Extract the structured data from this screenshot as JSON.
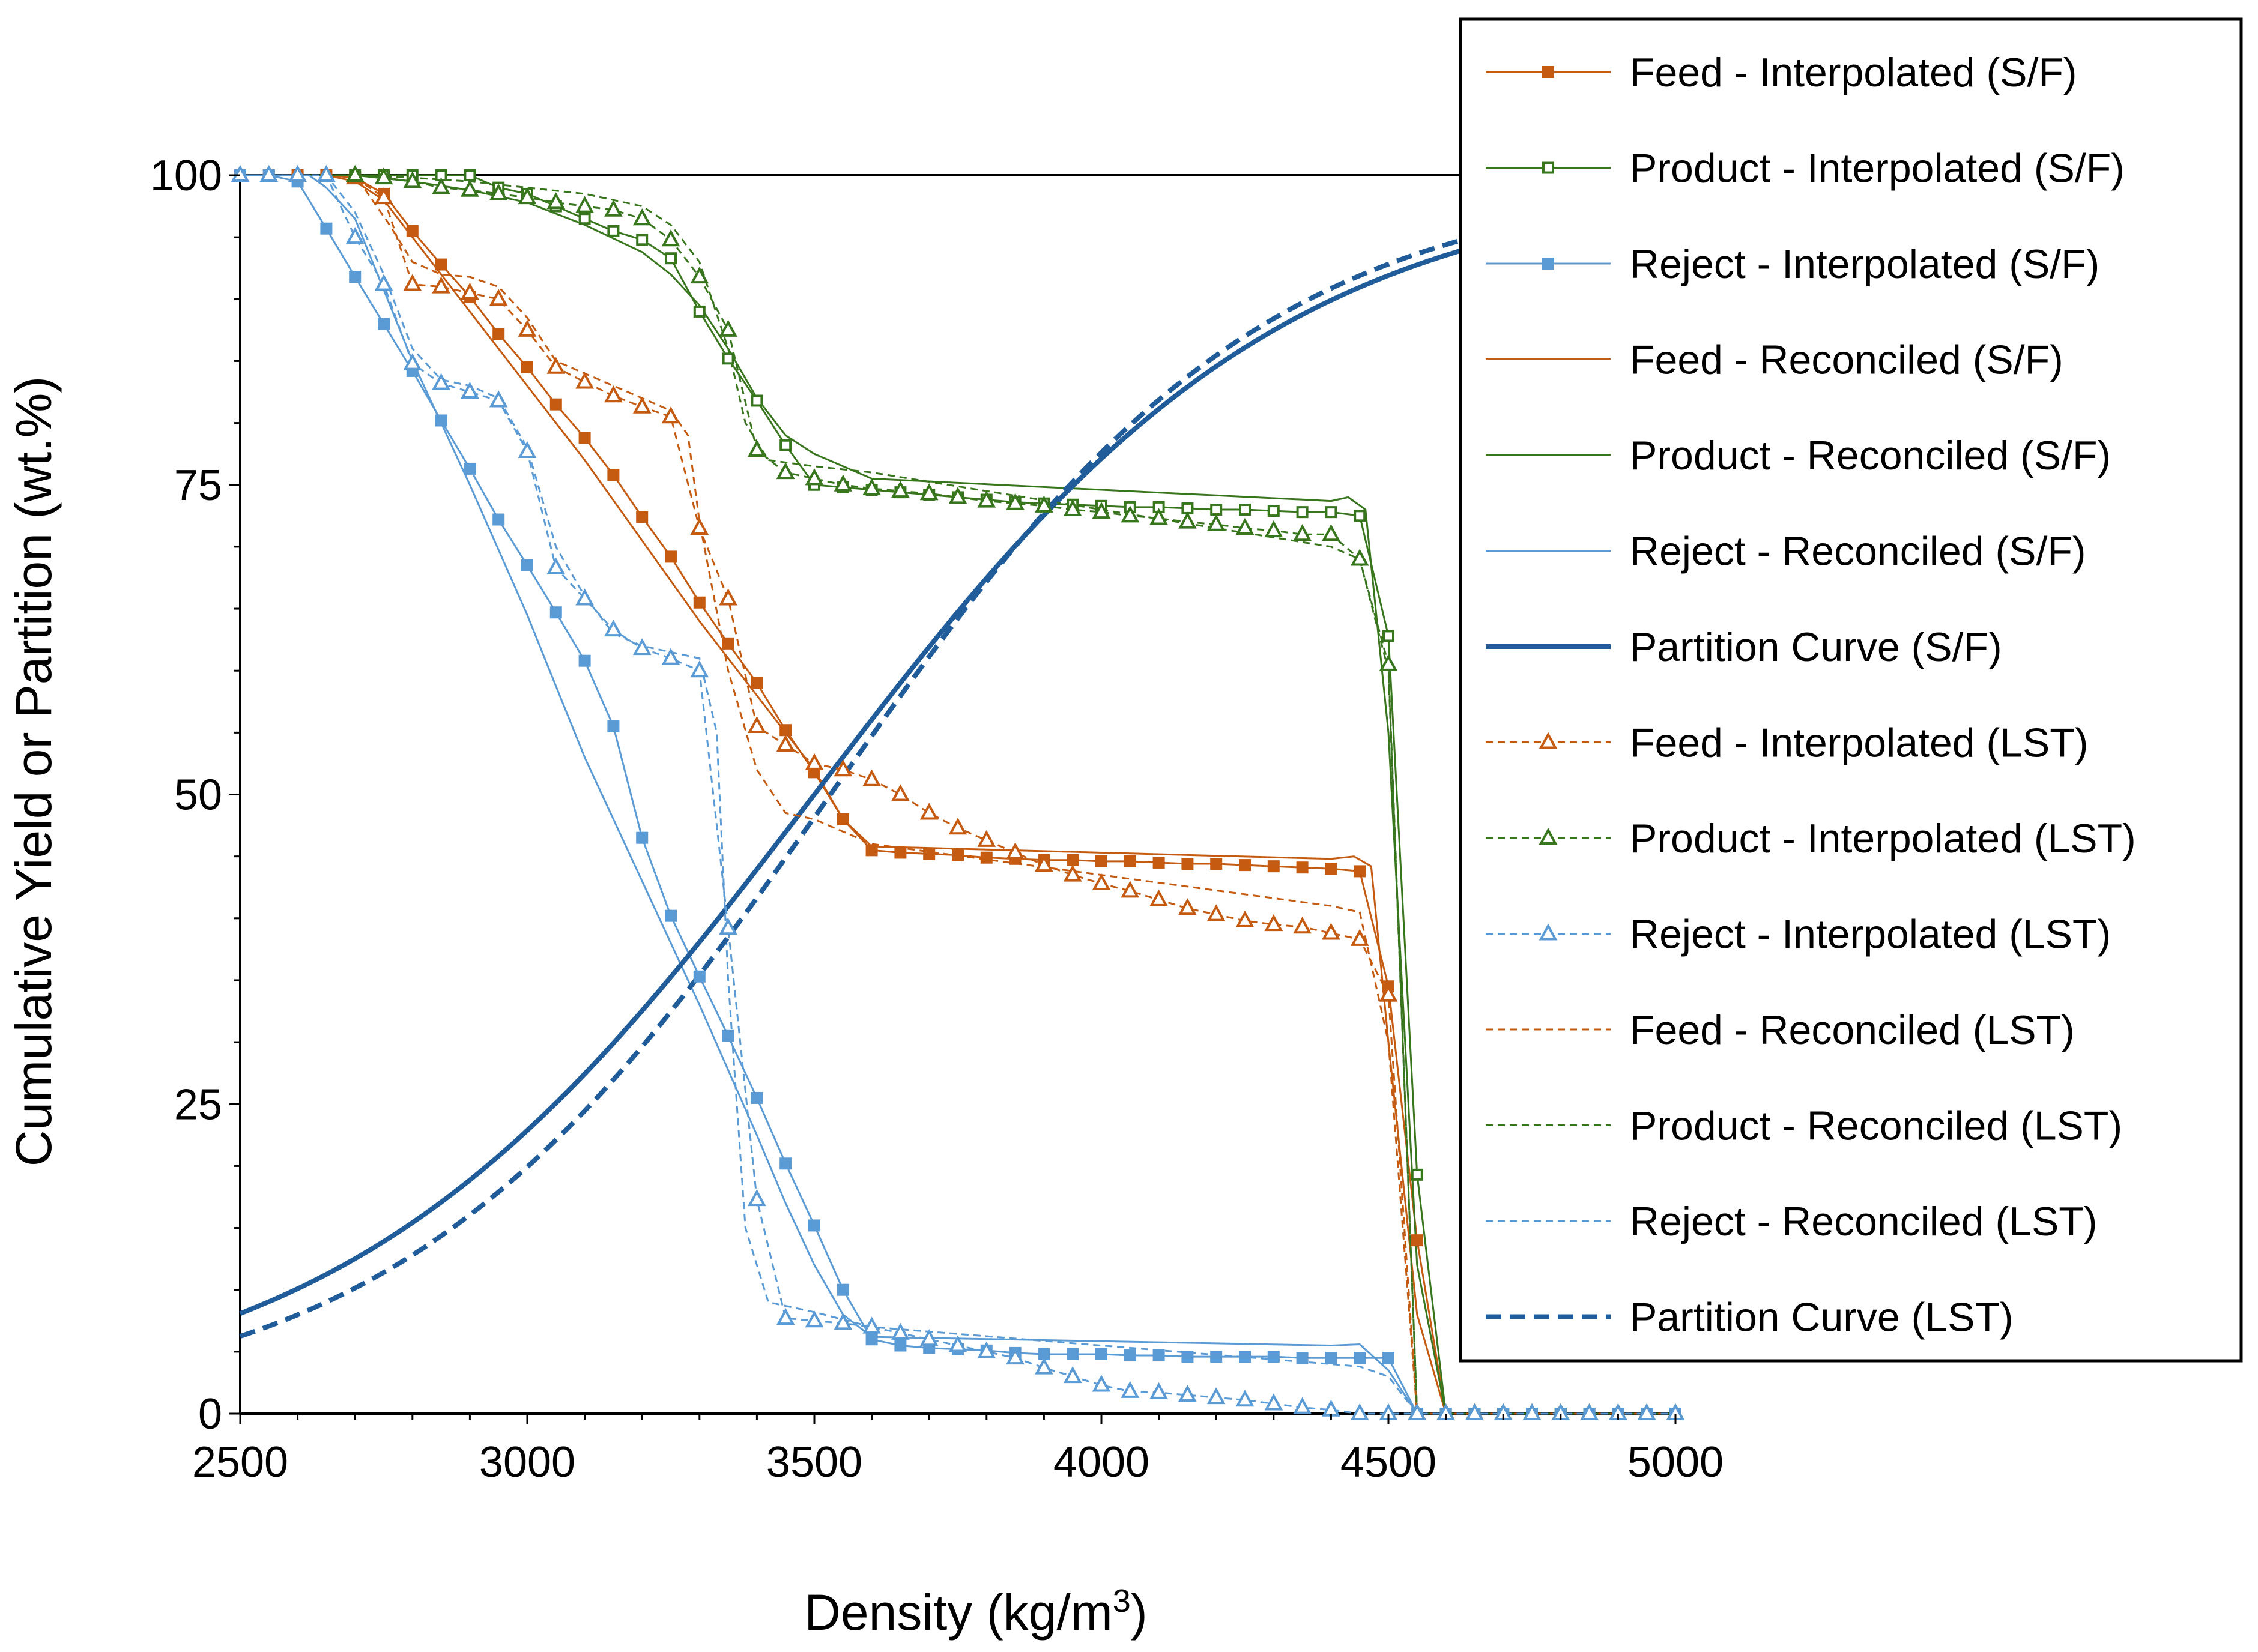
{
  "chart_data": {
    "type": "line",
    "xlabel": "Density (kg/m",
    "xlabel_sup": "3",
    "xlabel_close": ")",
    "ylabel": "Cumulative Yield or Partition (wt.%)",
    "xlim": [
      2500,
      5000
    ],
    "ylim": [
      0,
      100
    ],
    "xticks": [
      2500,
      3000,
      3500,
      4000,
      4500,
      5000
    ],
    "yticks": [
      0,
      25,
      50,
      75,
      100
    ],
    "legend_position": "top-right",
    "colors": {
      "feed": "#C55A11",
      "product": "#38761D",
      "reject": "#5B9BD5",
      "partition": "#1F5C99"
    },
    "series": [
      {
        "name": "Feed - Interpolated (S/F)",
        "color": "#C55A11",
        "style": "solid",
        "width": 3,
        "marker": "square-filled",
        "x": [
          2500,
          2550,
          2600,
          2650,
          2700,
          2750,
          2800,
          2850,
          2900,
          2950,
          3000,
          3050,
          3100,
          3150,
          3200,
          3250,
          3300,
          3350,
          3400,
          3450,
          3500,
          3550,
          3600,
          3650,
          3700,
          3750,
          3800,
          3850,
          3900,
          3950,
          4000,
          4050,
          4100,
          4150,
          4200,
          4250,
          4300,
          4350,
          4400,
          4450,
          4500,
          4550,
          4600,
          4650,
          4700,
          4750,
          4800,
          4850,
          4900,
          4950,
          5000
        ],
        "y": [
          100,
          100,
          100,
          100,
          99.8,
          98.5,
          95.5,
          92.8,
          90.2,
          87.2,
          84.5,
          81.5,
          78.8,
          75.8,
          72.4,
          69.2,
          65.5,
          62.2,
          59,
          55.2,
          51.8,
          48,
          45.5,
          45.3,
          45.2,
          45.1,
          44.9,
          44.8,
          44.7,
          44.7,
          44.6,
          44.6,
          44.5,
          44.4,
          44.4,
          44.3,
          44.2,
          44.1,
          44,
          43.8,
          34.5,
          14,
          0,
          0,
          0,
          0,
          0,
          0,
          0,
          0,
          0
        ]
      },
      {
        "name": "Product - Interpolated (S/F)",
        "color": "#38761D",
        "style": "solid",
        "width": 3,
        "marker": "square-open",
        "x": [
          2700,
          2750,
          2800,
          2850,
          2900,
          2950,
          3000,
          3050,
          3100,
          3150,
          3200,
          3250,
          3300,
          3350,
          3400,
          3450,
          3500,
          3550,
          3600,
          3650,
          3700,
          3750,
          3800,
          3850,
          3900,
          3950,
          4000,
          4050,
          4100,
          4150,
          4200,
          4250,
          4300,
          4350,
          4400,
          4450,
          4500,
          4550,
          4600,
          4650,
          4700,
          4750,
          4800,
          4850,
          4900,
          4950,
          5000
        ],
        "y": [
          100,
          100,
          100,
          100,
          100,
          99,
          98.5,
          97.5,
          96.5,
          95.5,
          94.8,
          93.3,
          89,
          85.2,
          81.8,
          78.2,
          75,
          74.8,
          74.6,
          74.4,
          74.2,
          74,
          73.8,
          73.6,
          73.5,
          73.4,
          73.3,
          73.2,
          73.2,
          73.1,
          73,
          73,
          72.9,
          72.8,
          72.8,
          72.5,
          62.8,
          19.3,
          0,
          0,
          0,
          0,
          0,
          0,
          0,
          0,
          0
        ]
      },
      {
        "name": "Reject - Interpolated (S/F)",
        "color": "#5B9BD5",
        "style": "solid",
        "width": 3,
        "marker": "square-filled",
        "x": [
          2500,
          2550,
          2600,
          2650,
          2700,
          2750,
          2800,
          2850,
          2900,
          2950,
          3000,
          3050,
          3100,
          3150,
          3200,
          3250,
          3300,
          3350,
          3400,
          3450,
          3500,
          3550,
          3600,
          3650,
          3700,
          3750,
          3800,
          3850,
          3900,
          3950,
          4000,
          4050,
          4100,
          4150,
          4200,
          4250,
          4300,
          4350,
          4400,
          4450,
          4500,
          4550,
          4600,
          4650,
          4700,
          4750,
          4800,
          4850,
          4900,
          4950,
          5000
        ],
        "y": [
          100,
          100,
          99.5,
          95.7,
          91.8,
          88,
          84.2,
          80.2,
          76.3,
          72.2,
          68.5,
          64.7,
          60.8,
          55.5,
          46.5,
          40.2,
          35.3,
          30.5,
          25.5,
          20.2,
          15.2,
          10,
          6,
          5.5,
          5.3,
          5.2,
          5.1,
          4.9,
          4.8,
          4.8,
          4.8,
          4.7,
          4.7,
          4.6,
          4.6,
          4.6,
          4.6,
          4.5,
          4.5,
          4.5,
          4.5,
          0,
          0,
          0,
          0,
          0,
          0,
          0,
          0,
          0,
          0
        ]
      },
      {
        "name": "Feed - Reconciled (S/F)",
        "color": "#C55A11",
        "style": "solid",
        "width": 3,
        "marker": "none",
        "x": [
          2500,
          2650,
          2700,
          2750,
          2800,
          2900,
          3000,
          3100,
          3200,
          3300,
          3400,
          3500,
          3550,
          3600,
          4400,
          4440,
          4470,
          4500,
          4550,
          4600,
          5000
        ],
        "y": [
          100,
          100,
          99.5,
          98,
          95,
          89,
          83,
          77,
          70.5,
          64,
          58,
          52,
          48,
          45.8,
          44.8,
          45,
          44.2,
          30,
          8,
          0,
          0
        ]
      },
      {
        "name": "Product - Reconciled (S/F)",
        "color": "#38761D",
        "style": "solid",
        "width": 3,
        "marker": "none",
        "x": [
          2500,
          2700,
          2800,
          2900,
          3000,
          3100,
          3200,
          3250,
          3300,
          3350,
          3400,
          3450,
          3500,
          3550,
          3600,
          4400,
          4430,
          4460,
          4500,
          4550,
          4600,
          5000
        ],
        "y": [
          100,
          100,
          99.5,
          98.8,
          97.8,
          96,
          93.8,
          92,
          89.5,
          86,
          82,
          79,
          77.5,
          76.5,
          75.5,
          73.7,
          74,
          73,
          55,
          12,
          0,
          0
        ]
      },
      {
        "name": "Reject - Reconciled (S/F)",
        "color": "#5B9BD5",
        "style": "solid",
        "width": 3,
        "marker": "none",
        "x": [
          2500,
          2620,
          2650,
          2700,
          2800,
          2900,
          3000,
          3100,
          3200,
          3300,
          3400,
          3450,
          3500,
          3550,
          3600,
          4400,
          4450,
          4500,
          4550,
          5000
        ],
        "y": [
          100,
          100,
          99,
          96.5,
          85,
          75,
          64.5,
          53,
          43,
          33,
          22.5,
          17,
          12,
          8,
          6.2,
          5.5,
          5.6,
          3.5,
          0,
          0
        ]
      },
      {
        "name": "Partition Curve (S/F)",
        "color": "#1F5C99",
        "style": "solid",
        "width": 8,
        "marker": "none",
        "curve": "partition",
        "ep": 452,
        "d50": 3500,
        "x": [],
        "y": []
      },
      {
        "name": "Feed - Interpolated (LST)",
        "color": "#C55A11",
        "style": "dashed",
        "width": 3,
        "marker": "triangle-open",
        "x": [
          2700,
          2750,
          2800,
          2850,
          2900,
          2950,
          3000,
          3050,
          3100,
          3150,
          3200,
          3250,
          3300,
          3350,
          3400,
          3450,
          3500,
          3550,
          3600,
          3650,
          3700,
          3750,
          3800,
          3850,
          3900,
          3950,
          4000,
          4050,
          4100,
          4150,
          4200,
          4250,
          4300,
          4350,
          4400,
          4450,
          4500,
          4550,
          4600,
          4650,
          4700,
          4750,
          4800,
          4850,
          4900,
          4950,
          5000
        ],
        "y": [
          99.8,
          98.2,
          91.2,
          91,
          90.5,
          90,
          87.5,
          84.5,
          83.3,
          82.2,
          81.3,
          80.5,
          71.5,
          65.8,
          55.5,
          54,
          52.5,
          52,
          51.2,
          50,
          48.5,
          47.3,
          46.3,
          45.3,
          44.3,
          43.5,
          42.8,
          42.2,
          41.5,
          40.8,
          40.3,
          39.8,
          39.5,
          39.3,
          38.8,
          38.3,
          33.8,
          0,
          0,
          0,
          0,
          0,
          0,
          0,
          0,
          0,
          0
        ]
      },
      {
        "name": "Product - Interpolated (LST)",
        "color": "#38761D",
        "style": "dashed",
        "width": 3,
        "marker": "triangle-open",
        "x": [
          2700,
          2750,
          2800,
          2850,
          2900,
          2950,
          3000,
          3050,
          3100,
          3150,
          3200,
          3250,
          3300,
          3350,
          3400,
          3450,
          3500,
          3550,
          3600,
          3650,
          3700,
          3750,
          3800,
          3850,
          3900,
          3950,
          4000,
          4050,
          4100,
          4150,
          4200,
          4250,
          4300,
          4350,
          4400,
          4450,
          4500,
          4550,
          4600,
          4650,
          4700,
          4750,
          4800,
          4850,
          4900,
          4950,
          5000
        ],
        "y": [
          100,
          99.8,
          99.5,
          99,
          98.8,
          98.5,
          98.2,
          97.8,
          97.5,
          97.2,
          96.5,
          94.8,
          91.8,
          87.5,
          77.8,
          76,
          75.5,
          75,
          74.7,
          74.5,
          74.3,
          74,
          73.7,
          73.5,
          73.3,
          73,
          72.8,
          72.5,
          72.3,
          72,
          71.8,
          71.5,
          71.3,
          71,
          71,
          69,
          60.5,
          0,
          0,
          0,
          0,
          0,
          0,
          0,
          0,
          0,
          0
        ]
      },
      {
        "name": "Reject - Interpolated (LST)",
        "color": "#5B9BD5",
        "style": "dashed",
        "width": 3,
        "marker": "triangle-open",
        "x": [
          2500,
          2550,
          2600,
          2650,
          2700,
          2750,
          2800,
          2850,
          2900,
          2950,
          3000,
          3050,
          3100,
          3150,
          3200,
          3250,
          3300,
          3350,
          3400,
          3450,
          3500,
          3550,
          3600,
          3650,
          3700,
          3750,
          3800,
          3850,
          3900,
          3950,
          4000,
          4050,
          4100,
          4150,
          4200,
          4250,
          4300,
          4350,
          4400,
          4450,
          4500,
          4550,
          4600,
          4650,
          4700,
          4750,
          4800,
          4850,
          4900,
          4950,
          5000
        ],
        "y": [
          100,
          100,
          100,
          100,
          95,
          91.2,
          84.8,
          83.2,
          82.5,
          81.8,
          77.7,
          68.3,
          65.8,
          63.3,
          61.8,
          61,
          60,
          39.2,
          17.3,
          7.7,
          7.5,
          7.3,
          7,
          6.5,
          6,
          5.5,
          5,
          4.5,
          3.7,
          3,
          2.3,
          1.8,
          1.7,
          1.5,
          1.3,
          1.1,
          0.8,
          0.5,
          0.3,
          0,
          0,
          0,
          0,
          0,
          0,
          0,
          0,
          0,
          0,
          0,
          0
        ]
      },
      {
        "name": "Feed - Reconciled (LST)",
        "color": "#C55A11",
        "style": "dashed",
        "width": 3,
        "marker": "none",
        "x": [
          2500,
          2700,
          2760,
          2800,
          2850,
          2900,
          2950,
          3000,
          3050,
          3100,
          3200,
          3250,
          3280,
          3300,
          3350,
          3400,
          3450,
          3500,
          3600,
          4400,
          4450,
          4500,
          4550,
          5000
        ],
        "y": [
          100,
          100,
          96,
          93,
          92,
          91.8,
          91,
          88.5,
          85,
          84,
          82,
          81,
          79,
          72,
          60,
          52,
          48.5,
          48,
          46,
          41,
          40.5,
          30,
          0,
          0
        ]
      },
      {
        "name": "Product - Reconciled (LST)",
        "color": "#38761D",
        "style": "dashed",
        "width": 3,
        "marker": "none",
        "x": [
          2500,
          2700,
          2800,
          2900,
          3000,
          3100,
          3200,
          3250,
          3300,
          3350,
          3380,
          3420,
          3500,
          3600,
          4400,
          4450,
          4500,
          4550,
          5000
        ],
        "y": [
          100,
          100,
          99.8,
          99.5,
          99,
          98.5,
          97.5,
          96,
          93,
          86,
          80,
          77,
          76.5,
          76,
          70,
          69,
          60,
          0,
          0
        ]
      },
      {
        "name": "Reject - Reconciled (LST)",
        "color": "#5B9BD5",
        "style": "dashed",
        "width": 3,
        "marker": "none",
        "x": [
          2500,
          2650,
          2700,
          2750,
          2800,
          2850,
          2900,
          2950,
          3000,
          3050,
          3100,
          3150,
          3200,
          3300,
          3330,
          3350,
          3380,
          3420,
          3500,
          3600,
          4400,
          4450,
          4500,
          4550,
          5000
        ],
        "y": [
          100,
          100,
          97,
          92,
          86,
          83.5,
          83,
          82,
          78,
          70,
          66,
          63,
          62,
          61,
          55,
          35,
          15,
          9,
          8.2,
          7,
          4,
          3.8,
          3,
          0,
          0
        ]
      },
      {
        "name": "Partition Curve (LST)",
        "color": "#1F5C99",
        "style": "dashed",
        "width": 8,
        "marker": "none",
        "curve": "partition",
        "ep": 417,
        "d50": 3528,
        "x": [],
        "y": []
      }
    ]
  }
}
